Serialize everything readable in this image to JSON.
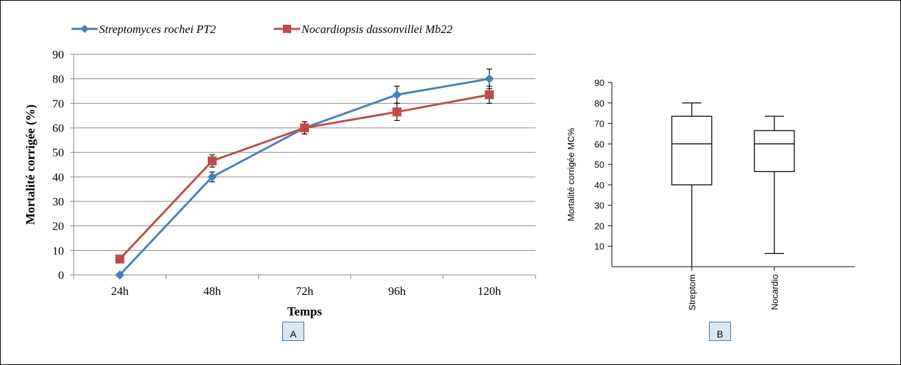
{
  "chart_data": [
    {
      "type": "line",
      "categories": [
        "24h",
        "48h",
        "72h",
        "96h",
        "120h"
      ],
      "series": [
        {
          "name": "Streptomyces rochei PT2",
          "values": [
            0,
            40,
            60,
            73.5,
            80
          ],
          "errors": [
            0,
            2,
            2.5,
            3.5,
            4
          ],
          "color": "#4a7ebb",
          "marker": "diamond"
        },
        {
          "name": "Nocardiopsis dassonvillei Mb22",
          "values": [
            6.5,
            46.5,
            60,
            66.5,
            73.5
          ],
          "errors": [
            0,
            2.5,
            2.5,
            3.5,
            3.5
          ],
          "color": "#be4b48",
          "marker": "square"
        }
      ],
      "xlabel": "Temps",
      "ylabel": "Mortalité corrigée (%)",
      "ylim": [
        0,
        90
      ],
      "yticks": [
        0,
        10,
        20,
        30,
        40,
        50,
        60,
        70,
        80,
        90
      ],
      "grid": true,
      "legend": "top-left"
    },
    {
      "type": "box",
      "categories": [
        "Streptom",
        "Nocardio"
      ],
      "boxes": [
        {
          "min": 0,
          "q1": 40,
          "median": 60,
          "q3": 73.5,
          "max": 80
        },
        {
          "min": 6.5,
          "q1": 46.5,
          "median": 60,
          "q3": 66.5,
          "max": 73.5
        }
      ],
      "ylabel": "Mortalité corrigée MC%",
      "ylim": [
        0,
        90
      ],
      "yticks": [
        10,
        20,
        30,
        40,
        50,
        60,
        70,
        80,
        90
      ],
      "grid": false
    }
  ],
  "labels": {
    "panel_a": "A",
    "panel_b": "B"
  }
}
